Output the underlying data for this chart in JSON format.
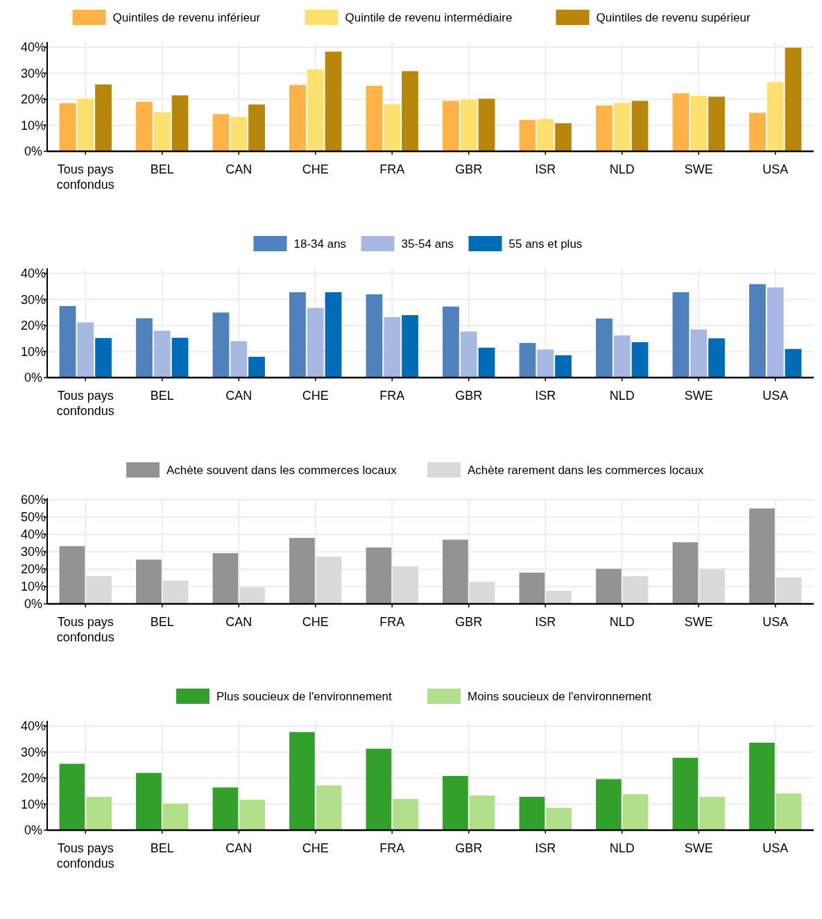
{
  "chart_data": [
    {
      "type": "bar",
      "categories": [
        "Tous pays confondus",
        "BEL",
        "CAN",
        "CHE",
        "FRA",
        "GBR",
        "ISR",
        "NLD",
        "SWE",
        "USA"
      ],
      "series": [
        {
          "name": "Quintiles de revenu inférieur",
          "color": "#ffb347",
          "values": [
            18.5,
            19,
            14.3,
            25.5,
            25.2,
            19.4,
            12,
            17.6,
            22.3,
            14.8
          ]
        },
        {
          "name": "Quintile de revenu intermédiaire",
          "color": "#fde06e",
          "values": [
            20.3,
            15,
            13.2,
            31.5,
            18,
            19.8,
            12.4,
            18.6,
            21.3,
            26.6
          ]
        },
        {
          "name": "Quintiles de revenu supérieur",
          "color": "#b8860b",
          "values": [
            25.7,
            21.5,
            18,
            38.3,
            30.8,
            20.2,
            10.8,
            19.4,
            21,
            39.8
          ]
        }
      ],
      "ylim": [
        0,
        42
      ],
      "yticks": [
        {
          "value": 0,
          "label": "0%"
        },
        {
          "value": 10,
          "label": "10%"
        },
        {
          "value": 20,
          "label": "20%"
        },
        {
          "value": 30,
          "label": "30%"
        },
        {
          "value": 40,
          "label": "40%"
        }
      ],
      "grid": true,
      "legend": "top"
    },
    {
      "type": "bar",
      "categories": [
        "Tous pays confondus",
        "BEL",
        "CAN",
        "CHE",
        "FRA",
        "GBR",
        "ISR",
        "NLD",
        "SWE",
        "USA"
      ],
      "series": [
        {
          "name": "18-34 ans",
          "color": "#4f81bd",
          "values": [
            27.5,
            22.8,
            25,
            32.8,
            32,
            27.3,
            13.3,
            22.7,
            32.8,
            35.9
          ]
        },
        {
          "name": "35-54 ans",
          "color": "#a7b8e3",
          "values": [
            21.2,
            18,
            14,
            26.8,
            23.2,
            17.7,
            10.8,
            16.2,
            18.5,
            34.6
          ]
        },
        {
          "name": "55 ans et plus",
          "color": "#006bb6",
          "values": [
            15.2,
            15.3,
            8,
            32.8,
            24,
            11.5,
            8.6,
            13.6,
            15.1,
            11
          ]
        }
      ],
      "ylim": [
        0,
        42
      ],
      "yticks": [
        {
          "value": 0,
          "label": "0%"
        },
        {
          "value": 10,
          "label": "10%"
        },
        {
          "value": 20,
          "label": "20%"
        },
        {
          "value": 30,
          "label": "30%"
        },
        {
          "value": 40,
          "label": "40%"
        }
      ],
      "grid": true,
      "legend": "top"
    },
    {
      "type": "bar",
      "categories": [
        "Tous pays confondus",
        "BEL",
        "CAN",
        "CHE",
        "FRA",
        "GBR",
        "ISR",
        "NLD",
        "SWE",
        "USA"
      ],
      "series": [
        {
          "name": "Achète souvent dans les commerces locaux",
          "color": "#939393",
          "values": [
            33.3,
            25.5,
            29.2,
            38,
            32.5,
            37,
            18,
            20.2,
            35.5,
            55
          ]
        },
        {
          "name": "Achète rarement dans les commerces locaux",
          "color": "#dadada",
          "values": [
            16,
            13.5,
            9.5,
            27.3,
            21.7,
            12.7,
            7.5,
            16,
            20,
            15.2
          ]
        }
      ],
      "ylim": [
        0,
        61
      ],
      "yticks": [
        {
          "value": 0,
          "label": "0%"
        },
        {
          "value": 10,
          "label": "10%"
        },
        {
          "value": 20,
          "label": "20%"
        },
        {
          "value": 30,
          "label": "30%"
        },
        {
          "value": 40,
          "label": "40%"
        },
        {
          "value": 50,
          "label": "50%"
        },
        {
          "value": 60,
          "label": "60%"
        }
      ],
      "grid": true,
      "legend": "top"
    },
    {
      "type": "bar",
      "categories": [
        "Tous pays confondus",
        "BEL",
        "CAN",
        "CHE",
        "FRA",
        "GBR",
        "ISR",
        "NLD",
        "SWE",
        "USA"
      ],
      "series": [
        {
          "name": "Plus soucieux de l'environnement",
          "color": "#33a02c",
          "values": [
            25.5,
            22,
            16.4,
            37.7,
            31.3,
            20.8,
            12.8,
            19.6,
            27.8,
            33.6
          ]
        },
        {
          "name": "Moins soucieux de l'environnement",
          "color": "#b2df8a",
          "values": [
            12.8,
            10.2,
            11.7,
            17.2,
            12,
            13.3,
            8.6,
            13.8,
            12.8,
            14.1
          ]
        }
      ],
      "ylim": [
        0,
        42
      ],
      "yticks": [
        {
          "value": 0,
          "label": "0%"
        },
        {
          "value": 10,
          "label": "10%"
        },
        {
          "value": 20,
          "label": "20%"
        },
        {
          "value": 30,
          "label": "30%"
        },
        {
          "value": 40,
          "label": "40%"
        }
      ],
      "grid": true,
      "legend": "top"
    }
  ]
}
